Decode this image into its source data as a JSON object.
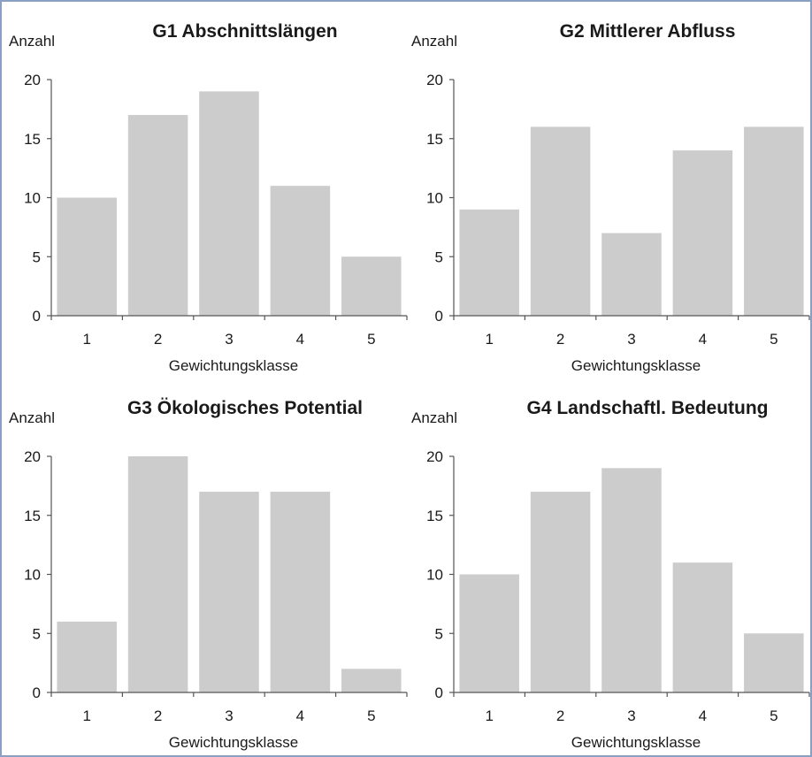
{
  "chart_data": [
    {
      "type": "bar",
      "title": "G1 Abschnittslängen",
      "ylabel": "Anzahl",
      "xlabel": "Gewichtungsklasse",
      "categories": [
        "1",
        "2",
        "3",
        "4",
        "5"
      ],
      "values": [
        10,
        17,
        19,
        11,
        5
      ],
      "ylim": [
        0,
        20
      ],
      "yticks": [
        0,
        5,
        10,
        15,
        20
      ],
      "bar_color": "#cccccc",
      "grid": false
    },
    {
      "type": "bar",
      "title": "G2 Mittlerer Abfluss",
      "ylabel": "Anzahl",
      "xlabel": "Gewichtungsklasse",
      "categories": [
        "1",
        "2",
        "3",
        "4",
        "5"
      ],
      "values": [
        9,
        16,
        7,
        14,
        16
      ],
      "ylim": [
        0,
        20
      ],
      "yticks": [
        0,
        5,
        10,
        15,
        20
      ],
      "bar_color": "#cccccc",
      "grid": false
    },
    {
      "type": "bar",
      "title": "G3 Ökologisches Potential",
      "ylabel": "Anzahl",
      "xlabel": "Gewichtungsklasse",
      "categories": [
        "1",
        "2",
        "3",
        "4",
        "5"
      ],
      "values": [
        6,
        20,
        17,
        17,
        2
      ],
      "ylim": [
        0,
        20
      ],
      "yticks": [
        0,
        5,
        10,
        15,
        20
      ],
      "bar_color": "#cccccc",
      "grid": false
    },
    {
      "type": "bar",
      "title": "G4 Landschaftl. Bedeutung",
      "ylabel": "Anzahl",
      "xlabel": "Gewichtungsklasse",
      "categories": [
        "1",
        "2",
        "3",
        "4",
        "5"
      ],
      "values": [
        10,
        17,
        19,
        11,
        5
      ],
      "ylim": [
        0,
        20
      ],
      "yticks": [
        0,
        5,
        10,
        15,
        20
      ],
      "bar_color": "#cccccc",
      "grid": false
    }
  ]
}
